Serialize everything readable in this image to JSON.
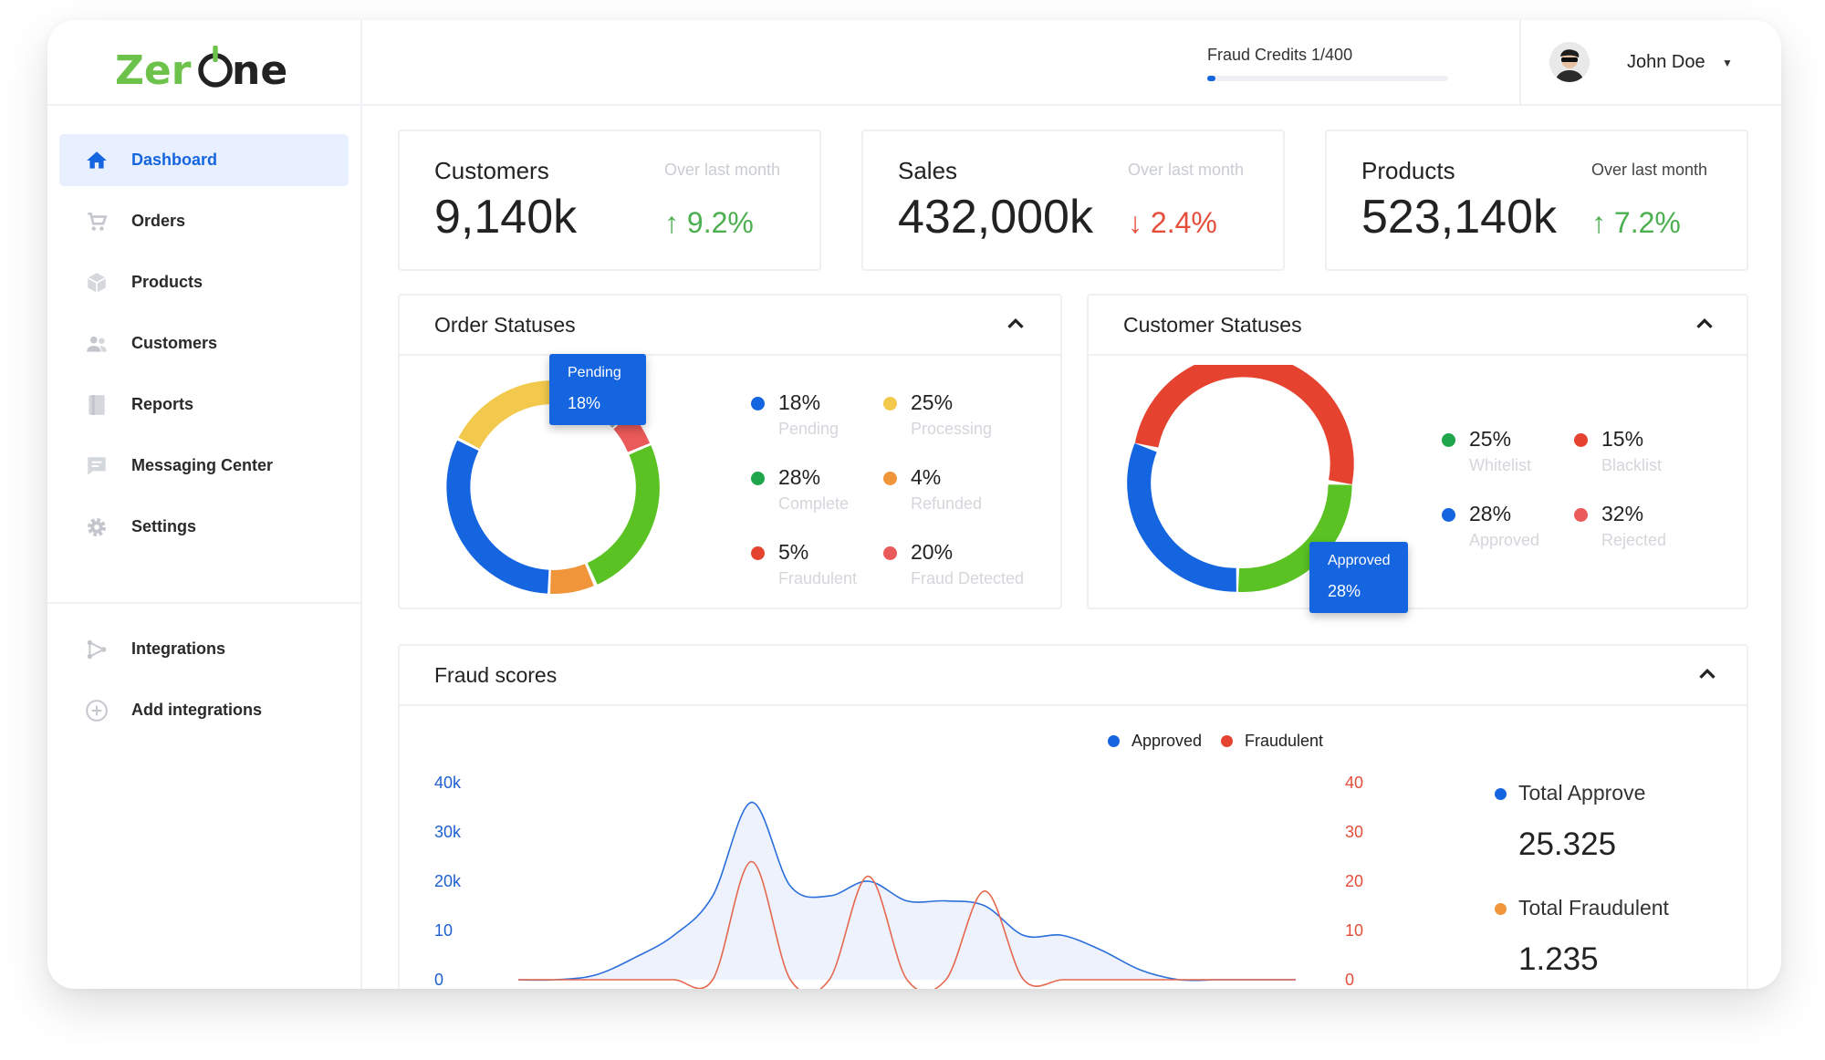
{
  "brand": {
    "name": "ZerOne"
  },
  "sidebar": {
    "items": [
      {
        "label": "Dashboard",
        "icon": "home-icon",
        "active": true
      },
      {
        "label": "Orders",
        "icon": "cart-icon"
      },
      {
        "label": "Products",
        "icon": "box-icon"
      },
      {
        "label": "Customers",
        "icon": "users-icon"
      },
      {
        "label": "Reports",
        "icon": "report-icon"
      },
      {
        "label": "Messaging Center",
        "icon": "message-icon"
      },
      {
        "label": "Settings",
        "icon": "gear-icon"
      }
    ],
    "secondary": [
      {
        "label": "Integrations",
        "icon": "integrations-icon"
      },
      {
        "label": "Add integrations",
        "icon": "plus-circle-icon"
      }
    ]
  },
  "topbar": {
    "credits_label": "Fraud Credits 1/400",
    "credits_used": 1,
    "credits_total": 400,
    "user_name": "John Doe"
  },
  "stats": [
    {
      "title": "Customers",
      "sub": "Over last month",
      "value": "9,140k",
      "change": "9.2%",
      "direction": "up"
    },
    {
      "title": "Sales",
      "sub": "Over last month",
      "value": "432,000k",
      "change": "2.4%",
      "direction": "down"
    },
    {
      "title": "Products",
      "sub": "Over last month",
      "value": "523,140k",
      "change": "7.2%",
      "direction": "up"
    }
  ],
  "order_statuses": {
    "title": "Order Statuses",
    "tooltip": {
      "label": "Pending",
      "value": "18%"
    },
    "legend": [
      {
        "pct": "18%",
        "name": "Pending",
        "color": "#1565e1"
      },
      {
        "pct": "25%",
        "name": "Processing",
        "color": "#f2c94c"
      },
      {
        "pct": "28%",
        "name": "Complete",
        "color": "#1fa64a"
      },
      {
        "pct": "4%",
        "name": "Refunded",
        "color": "#f0953a"
      },
      {
        "pct": "5%",
        "name": "Fraudulent",
        "color": "#e5432f"
      },
      {
        "pct": "20%",
        "name": "Fraud Detected",
        "color": "#ea5a5a"
      }
    ]
  },
  "customer_statuses": {
    "title": "Customer Statuses",
    "tooltip": {
      "label": "Approved",
      "value": "28%"
    },
    "legend": [
      {
        "pct": "25%",
        "name": "Whitelist",
        "color": "#1fa64a"
      },
      {
        "pct": "15%",
        "name": "Blacklist",
        "color": "#e5432f"
      },
      {
        "pct": "28%",
        "name": "Approved",
        "color": "#1565e1"
      },
      {
        "pct": "32%",
        "name": "Rejected",
        "color": "#ea5a5a"
      }
    ]
  },
  "fraud_scores": {
    "title": "Fraud scores",
    "legend": [
      {
        "name": "Approved",
        "color": "#1565e1"
      },
      {
        "name": "Fraudulent",
        "color": "#e5432f"
      }
    ],
    "y_left_ticks": [
      "40k",
      "30k",
      "20k",
      "10",
      "0"
    ],
    "y_right_ticks": [
      "40",
      "30",
      "20",
      "10",
      "0"
    ],
    "totals": [
      {
        "label": "Total Approve",
        "value": "25.325",
        "color": "#1565e1"
      },
      {
        "label": "Total Fraudulent",
        "value": "1.235",
        "color": "#f0953a"
      }
    ]
  },
  "chart_data": {
    "type": "area",
    "title": "Fraud scores",
    "x": [
      0,
      5,
      10,
      15,
      20,
      25,
      30,
      35,
      40,
      45,
      50,
      55,
      60,
      65,
      70,
      75,
      80,
      85,
      90,
      95,
      100
    ],
    "series": [
      {
        "name": "Approved",
        "axis": "left",
        "values": [
          0,
          0,
          1000,
          4500,
          9000,
          17000,
          36000,
          19000,
          17000,
          20000,
          16000,
          16000,
          15000,
          9000,
          9000,
          6000,
          2000,
          0,
          0,
          0,
          0
        ]
      },
      {
        "name": "Fraudulent",
        "axis": "right",
        "values": [
          0,
          0,
          0,
          0,
          0,
          0,
          24000,
          0,
          0,
          21000,
          0,
          0,
          18000,
          0,
          0,
          0,
          0,
          0,
          0,
          0,
          0
        ]
      }
    ],
    "y_left_ticks": [
      "40k",
      "30k",
      "20k",
      "10",
      "0"
    ],
    "y_right_ticks": [
      "40",
      "30",
      "20",
      "10",
      "0"
    ],
    "legend": "top-center"
  }
}
